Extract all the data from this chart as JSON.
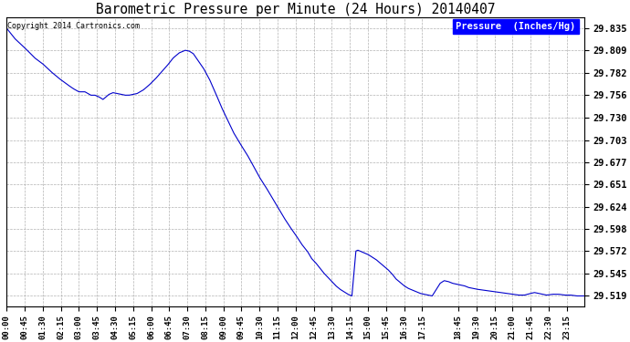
{
  "title": "Barometric Pressure per Minute (24 Hours) 20140407",
  "copyright": "Copyright 2014 Cartronics.com",
  "legend_label": "Pressure  (Inches/Hg)",
  "line_color": "#0000cc",
  "background_color": "#ffffff",
  "grid_color": "#aaaaaa",
  "yticks": [
    29.519,
    29.545,
    29.572,
    29.598,
    29.624,
    29.651,
    29.677,
    29.703,
    29.73,
    29.756,
    29.782,
    29.809,
    29.835
  ],
  "ylim": [
    29.507,
    29.848
  ],
  "tick_minutes": [
    0,
    45,
    90,
    135,
    180,
    225,
    270,
    315,
    360,
    405,
    450,
    495,
    540,
    585,
    630,
    675,
    720,
    765,
    810,
    855,
    900,
    945,
    990,
    1035,
    1125,
    1170,
    1215,
    1260,
    1305,
    1350,
    1395
  ],
  "tick_labels": [
    "00:00",
    "00:45",
    "01:30",
    "02:15",
    "03:00",
    "03:45",
    "04:30",
    "05:15",
    "06:00",
    "06:45",
    "07:30",
    "08:15",
    "09:00",
    "09:45",
    "10:30",
    "11:15",
    "12:00",
    "12:45",
    "13:30",
    "14:15",
    "15:00",
    "15:45",
    "16:30",
    "17:15",
    "18:45",
    "19:30",
    "20:15",
    "21:00",
    "21:45",
    "22:30",
    "23:15"
  ],
  "control_points": [
    [
      0,
      29.835
    ],
    [
      20,
      29.823
    ],
    [
      45,
      29.812
    ],
    [
      70,
      29.8
    ],
    [
      90,
      29.793
    ],
    [
      110,
      29.784
    ],
    [
      130,
      29.776
    ],
    [
      150,
      29.769
    ],
    [
      165,
      29.764
    ],
    [
      180,
      29.76
    ],
    [
      195,
      29.76
    ],
    [
      210,
      29.756
    ],
    [
      215,
      29.756
    ],
    [
      220,
      29.756
    ],
    [
      230,
      29.754
    ],
    [
      240,
      29.751
    ],
    [
      255,
      29.757
    ],
    [
      265,
      29.759
    ],
    [
      275,
      29.758
    ],
    [
      285,
      29.757
    ],
    [
      295,
      29.756
    ],
    [
      305,
      29.756
    ],
    [
      315,
      29.757
    ],
    [
      325,
      29.758
    ],
    [
      340,
      29.762
    ],
    [
      355,
      29.768
    ],
    [
      370,
      29.775
    ],
    [
      385,
      29.783
    ],
    [
      400,
      29.791
    ],
    [
      415,
      29.8
    ],
    [
      430,
      29.806
    ],
    [
      445,
      29.809
    ],
    [
      455,
      29.808
    ],
    [
      465,
      29.805
    ],
    [
      475,
      29.798
    ],
    [
      490,
      29.788
    ],
    [
      505,
      29.775
    ],
    [
      520,
      29.759
    ],
    [
      535,
      29.742
    ],
    [
      550,
      29.727
    ],
    [
      565,
      29.712
    ],
    [
      580,
      29.7
    ],
    [
      600,
      29.685
    ],
    [
      615,
      29.672
    ],
    [
      630,
      29.659
    ],
    [
      645,
      29.648
    ],
    [
      660,
      29.636
    ],
    [
      675,
      29.624
    ],
    [
      690,
      29.612
    ],
    [
      705,
      29.601
    ],
    [
      720,
      29.591
    ],
    [
      735,
      29.58
    ],
    [
      750,
      29.571
    ],
    [
      760,
      29.563
    ],
    [
      770,
      29.558
    ],
    [
      780,
      29.552
    ],
    [
      790,
      29.546
    ],
    [
      800,
      29.541
    ],
    [
      810,
      29.536
    ],
    [
      820,
      29.531
    ],
    [
      830,
      29.527
    ],
    [
      840,
      29.524
    ],
    [
      850,
      29.521
    ],
    [
      860,
      29.519
    ],
    [
      870,
      29.572
    ],
    [
      875,
      29.573
    ],
    [
      880,
      29.572
    ],
    [
      885,
      29.571
    ],
    [
      890,
      29.57
    ],
    [
      900,
      29.568
    ],
    [
      910,
      29.565
    ],
    [
      920,
      29.562
    ],
    [
      930,
      29.558
    ],
    [
      940,
      29.554
    ],
    [
      950,
      29.55
    ],
    [
      960,
      29.545
    ],
    [
      965,
      29.542
    ],
    [
      970,
      29.539
    ],
    [
      975,
      29.537
    ],
    [
      980,
      29.535
    ],
    [
      990,
      29.531
    ],
    [
      1000,
      29.528
    ],
    [
      1010,
      29.526
    ],
    [
      1020,
      29.524
    ],
    [
      1030,
      29.522
    ],
    [
      1040,
      29.521
    ],
    [
      1050,
      29.52
    ],
    [
      1060,
      29.519
    ],
    [
      1080,
      29.534
    ],
    [
      1090,
      29.537
    ],
    [
      1100,
      29.536
    ],
    [
      1110,
      29.534
    ],
    [
      1120,
      29.533
    ],
    [
      1130,
      29.532
    ],
    [
      1140,
      29.531
    ],
    [
      1150,
      29.529
    ],
    [
      1160,
      29.528
    ],
    [
      1170,
      29.527
    ],
    [
      1185,
      29.526
    ],
    [
      1200,
      29.525
    ],
    [
      1215,
      29.524
    ],
    [
      1230,
      29.523
    ],
    [
      1245,
      29.522
    ],
    [
      1260,
      29.521
    ],
    [
      1275,
      29.52
    ],
    [
      1290,
      29.52
    ],
    [
      1305,
      29.522
    ],
    [
      1315,
      29.523
    ],
    [
      1325,
      29.522
    ],
    [
      1335,
      29.521
    ],
    [
      1345,
      29.52
    ],
    [
      1360,
      29.521
    ],
    [
      1375,
      29.521
    ],
    [
      1390,
      29.52
    ],
    [
      1405,
      29.52
    ],
    [
      1420,
      29.519
    ],
    [
      1439,
      29.519
    ]
  ]
}
